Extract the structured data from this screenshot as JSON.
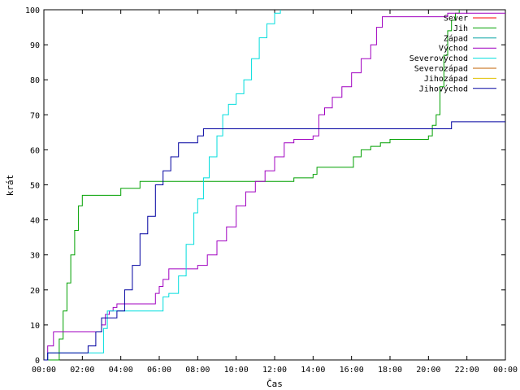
{
  "chart_data": {
    "type": "line",
    "title": "",
    "xlabel": "Čas",
    "ylabel": "krát",
    "xlim": [
      0,
      24
    ],
    "ylim": [
      0,
      100
    ],
    "grid": false,
    "legend_position": "top-right",
    "x_tick_labels": [
      "00:00",
      "02:00",
      "04:00",
      "06:00",
      "08:00",
      "10:00",
      "12:00",
      "14:00",
      "16:00",
      "18:00",
      "20:00",
      "22:00",
      "00:00"
    ],
    "y_tick_labels": [
      "0",
      "10",
      "20",
      "30",
      "40",
      "50",
      "60",
      "70",
      "80",
      "90",
      "100"
    ],
    "y_ticks": [
      0,
      10,
      20,
      30,
      40,
      50,
      60,
      70,
      80,
      90,
      100
    ],
    "x_unit": "hours",
    "series": [
      {
        "name": "Sever",
        "color": "#ff0000",
        "x": [],
        "y": []
      },
      {
        "name": "Jih",
        "color": "#00a000",
        "x": [
          0,
          0.6,
          0.8,
          1.0,
          1.2,
          1.4,
          1.6,
          1.8,
          2.0,
          2.6,
          2.8,
          3.8,
          4.0,
          4.9,
          5.0,
          6.0,
          7.0,
          8.0,
          9.0,
          10.0,
          11.0,
          12.0,
          13.0,
          14.0,
          14.2,
          15.0,
          16.0,
          16.1,
          16.5,
          17.0,
          17.5,
          18.0,
          19.0,
          20.0,
          20.2,
          20.4,
          20.6,
          20.8,
          21.0,
          21.2,
          21.4,
          21.6
        ],
        "y": [
          0,
          0,
          6,
          14,
          22,
          30,
          37,
          44,
          47,
          47,
          47,
          47,
          49,
          49,
          51,
          51,
          51,
          51,
          51,
          51,
          51,
          51,
          52,
          53,
          55,
          55,
          55,
          58,
          60,
          61,
          62,
          63,
          63,
          64,
          67,
          70,
          78,
          87,
          94,
          97,
          99,
          100
        ]
      },
      {
        "name": "Západ",
        "color": "#00a0a0",
        "x": [],
        "y": []
      },
      {
        "name": "Východ",
        "color": "#a000c0",
        "x": [
          0,
          0.2,
          0.5,
          1.0,
          2.0,
          2.8,
          3.0,
          3.2,
          3.4,
          3.6,
          3.8,
          4.0,
          5.0,
          5.6,
          5.8,
          6.0,
          6.2,
          6.5,
          7.0,
          7.5,
          8.0,
          8.5,
          9.0,
          9.5,
          10.0,
          10.5,
          11.0,
          11.5,
          12.0,
          12.5,
          13.0,
          13.5,
          14.0,
          14.3,
          14.6,
          15.0,
          15.5,
          16.0,
          16.5,
          17.0,
          17.3,
          17.6,
          18.0,
          19.0,
          20.0,
          21.0,
          22.0,
          23.0,
          24.0
        ],
        "y": [
          0,
          4,
          8,
          8,
          8,
          8,
          10,
          13,
          14,
          15,
          16,
          16,
          16,
          16,
          19,
          21,
          23,
          26,
          26,
          26,
          27,
          30,
          34,
          38,
          44,
          48,
          51,
          54,
          58,
          62,
          63,
          63,
          64,
          70,
          72,
          75,
          78,
          82,
          86,
          90,
          95,
          98,
          98,
          98,
          98,
          99,
          99,
          99,
          99
        ]
      },
      {
        "name": "Severovýchod",
        "color": "#00dddd",
        "x": [
          0,
          0.2,
          2.0,
          2.9,
          3.1,
          3.3,
          3.5,
          4.0,
          5.0,
          5.9,
          6.2,
          6.5,
          7.0,
          7.4,
          7.8,
          8.0,
          8.3,
          8.6,
          9.0,
          9.3,
          9.6,
          10.0,
          10.4,
          10.8,
          11.2,
          11.6,
          12.0,
          12.3
        ],
        "y": [
          0,
          2,
          2,
          2,
          9,
          14,
          14,
          14,
          14,
          14,
          18,
          19,
          24,
          33,
          42,
          46,
          52,
          58,
          64,
          70,
          73,
          76,
          80,
          86,
          92,
          96,
          99,
          100
        ]
      },
      {
        "name": "Severozápad",
        "color": "#c06000",
        "x": [],
        "y": []
      },
      {
        "name": "Jihozápad",
        "color": "#e0c000",
        "x": [],
        "y": []
      },
      {
        "name": "Jihovýchod",
        "color": "#0000a0",
        "x": [
          0,
          0.2,
          1.0,
          2.0,
          2.3,
          2.7,
          3.0,
          3.4,
          3.8,
          4.2,
          4.6,
          5.0,
          5.4,
          5.8,
          6.2,
          6.6,
          7.0,
          7.5,
          8.0,
          8.3,
          8.6,
          9.0,
          10.0,
          11.0,
          12.0,
          13.0,
          14.0,
          15.0,
          16.0,
          17.0,
          18.0,
          19.0,
          20.0,
          21.0,
          21.2,
          22.0,
          23.0,
          24.0
        ],
        "y": [
          0,
          2,
          2,
          2,
          4,
          8,
          12,
          12,
          14,
          20,
          27,
          36,
          41,
          50,
          54,
          58,
          62,
          62,
          64,
          66,
          66,
          66,
          66,
          66,
          66,
          66,
          66,
          66,
          66,
          66,
          66,
          66,
          66,
          66,
          68,
          68,
          68,
          68
        ]
      }
    ]
  }
}
